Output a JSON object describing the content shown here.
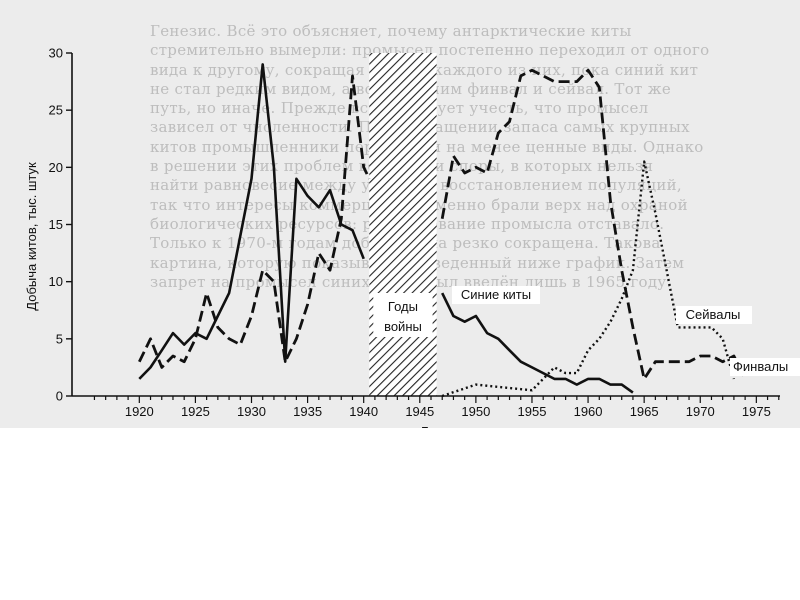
{
  "chart_data": {
    "type": "line",
    "ylabel": "Добыча китов, тыс. штук",
    "xlabel": "Годы",
    "xlim": [
      1914,
      1978
    ],
    "ylim": [
      0,
      30
    ],
    "x_ticks": [
      "1920",
      "1925",
      "1930",
      "1935",
      "1940",
      "1945",
      "1950",
      "1955",
      "1960",
      "1965",
      "1970",
      "1975"
    ],
    "y_ticks": [
      "0",
      "5",
      "10",
      "15",
      "20",
      "25",
      "30"
    ],
    "war_region": {
      "from": 1940.5,
      "to": 1946.5,
      "label_line1": "Годы",
      "label_line2": "войны"
    },
    "series": [
      {
        "name": "Синие киты",
        "style": "solid",
        "segments": [
          [
            [
              1920,
              1.5
            ],
            [
              1921,
              2.5
            ],
            [
              1922,
              4
            ],
            [
              1923,
              5.5
            ],
            [
              1924,
              4.5
            ],
            [
              1925,
              5.5
            ],
            [
              1926,
              5
            ],
            [
              1927,
              7
            ],
            [
              1928,
              9
            ],
            [
              1929,
              14
            ],
            [
              1930,
              19
            ],
            [
              1931,
              29
            ],
            [
              1932,
              20
            ],
            [
              1933,
              3
            ],
            [
              1934,
              19
            ],
            [
              1935,
              17.5
            ],
            [
              1936,
              16.5
            ],
            [
              1937,
              18
            ],
            [
              1938,
              15
            ],
            [
              1939,
              14.5
            ],
            [
              1940,
              12
            ]
          ],
          [
            [
              1947,
              9
            ],
            [
              1948,
              7
            ],
            [
              1949,
              6.5
            ],
            [
              1950,
              7
            ],
            [
              1951,
              5.5
            ],
            [
              1952,
              5
            ],
            [
              1953,
              4
            ],
            [
              1954,
              3
            ],
            [
              1955,
              2.5
            ],
            [
              1956,
              2
            ],
            [
              1957,
              1.5
            ],
            [
              1958,
              1.5
            ],
            [
              1959,
              1
            ],
            [
              1960,
              1.5
            ],
            [
              1961,
              1.5
            ],
            [
              1962,
              1
            ],
            [
              1963,
              1
            ],
            [
              1964,
              0.3
            ]
          ]
        ]
      },
      {
        "name": "Финвалы",
        "style": "dashed",
        "segments": [
          [
            [
              1920,
              3
            ],
            [
              1921,
              5
            ],
            [
              1922,
              2.5
            ],
            [
              1923,
              3.5
            ],
            [
              1924,
              3
            ],
            [
              1925,
              5
            ],
            [
              1926,
              9
            ],
            [
              1927,
              6
            ],
            [
              1928,
              5
            ],
            [
              1929,
              4.5
            ],
            [
              1930,
              7
            ],
            [
              1931,
              11
            ],
            [
              1932,
              10
            ],
            [
              1933,
              3
            ],
            [
              1934,
              5
            ],
            [
              1935,
              8
            ],
            [
              1936,
              12.5
            ],
            [
              1937,
              11
            ],
            [
              1938,
              15.5
            ],
            [
              1939,
              28
            ],
            [
              1940,
              20
            ],
            [
              1940.5,
              19
            ]
          ],
          [
            [
              1947,
              15.5
            ],
            [
              1948,
              21
            ],
            [
              1949,
              19.5
            ],
            [
              1950,
              20
            ],
            [
              1951,
              19.5
            ],
            [
              1952,
              23
            ],
            [
              1953,
              24
            ],
            [
              1954,
              28
            ],
            [
              1955,
              28.5
            ],
            [
              1956,
              28
            ],
            [
              1957,
              27.5
            ],
            [
              1958,
              27.5
            ],
            [
              1959,
              27.5
            ],
            [
              1960,
              28.5
            ],
            [
              1961,
              27
            ],
            [
              1962,
              17
            ],
            [
              1963,
              11
            ],
            [
              1964,
              6
            ],
            [
              1965,
              1.5
            ],
            [
              1966,
              3
            ],
            [
              1967,
              3
            ],
            [
              1968,
              3
            ],
            [
              1969,
              3
            ],
            [
              1970,
              3.5
            ],
            [
              1971,
              3.5
            ],
            [
              1972,
              3
            ],
            [
              1973,
              3.5
            ],
            [
              1974,
              1.5
            ]
          ]
        ]
      },
      {
        "name": "Сейвалы",
        "style": "dotted",
        "segments": [
          [
            [
              1947,
              0
            ],
            [
              1950,
              1
            ],
            [
              1955,
              0.5
            ],
            [
              1957,
              2.5
            ],
            [
              1958,
              2
            ],
            [
              1959,
              2
            ],
            [
              1960,
              4
            ],
            [
              1961,
              5
            ],
            [
              1962,
              6.5
            ],
            [
              1963,
              8.5
            ],
            [
              1964,
              11
            ],
            [
              1965,
              20.5
            ],
            [
              1966,
              16
            ],
            [
              1967,
              11
            ],
            [
              1968,
              6
            ],
            [
              1969,
              6
            ],
            [
              1970,
              6
            ],
            [
              1971,
              6
            ],
            [
              1972,
              5
            ],
            [
              1973,
              1.5
            ]
          ]
        ]
      }
    ],
    "annotations": [
      "Синие киты",
      "Сейвалы",
      "Финвалы"
    ]
  },
  "background_text": [
    "Генезис. Всё это объясняет, почему антарктические киты",
    "стремительно вымерли: промысел постепенно переходил от одного",
    "вида к другому, сокращая запасы каждого из них, пока синий кит",
    "не стал редким видом, а вслед за ним финвал и сейвал. Тот же",
    "путь, но иначе. Прежде всего следует учесть, что промысел",
    "зависел от численности. При сокращении запаса самых крупных",
    "китов промышленники переходили на менее ценные виды. Однако",
    "в решении этих проблем возникали споры, в которых нельзя",
    "найти равновесие между уловом и восстановлением популяций,",
    "так что интересы коммерции неизменно брали верх над охраной",
    "биологических ресурсов: регулирование промысла отставало.",
    "Только к 1970-м годам добыча была резко сокращена. Такова",
    "картина, которую показывает приведенный ниже график. Затем",
    "запрет на промысел синих китов был введён лишь в 1965 году."
  ]
}
